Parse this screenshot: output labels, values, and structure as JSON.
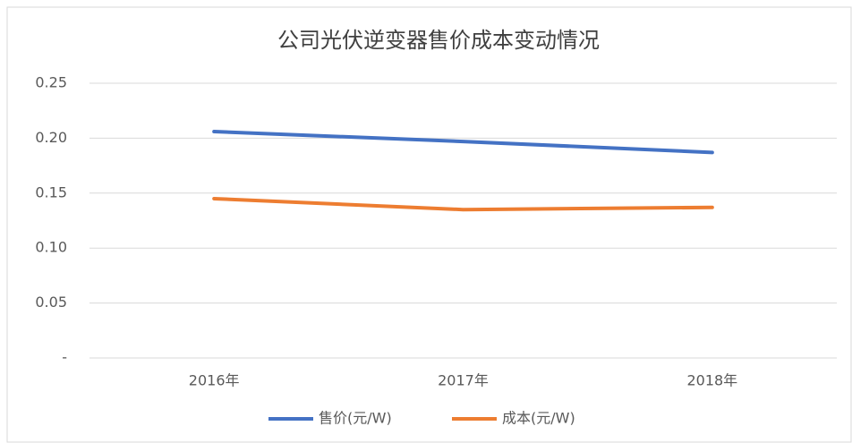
{
  "chart_data": {
    "type": "line",
    "title": "公司光伏逆变器售价成本变动情况",
    "categories": [
      "2016年",
      "2017年",
      "2018年"
    ],
    "series": [
      {
        "name": "售价(元/W)",
        "color": "#4472c4",
        "values": [
          0.206,
          0.197,
          0.187
        ]
      },
      {
        "name": "成本(元/W)",
        "color": "#ed7d31",
        "values": [
          0.145,
          0.135,
          0.137
        ]
      }
    ],
    "ylim": [
      0,
      0.25
    ],
    "yticks": [
      {
        "value": 0,
        "label": "-"
      },
      0.05,
      {
        "value": 0.1,
        "label": "0.10"
      },
      0.15,
      {
        "value": 0.2,
        "label": "0.20"
      },
      0.25
    ],
    "grid": true,
    "legend": "bottom"
  }
}
